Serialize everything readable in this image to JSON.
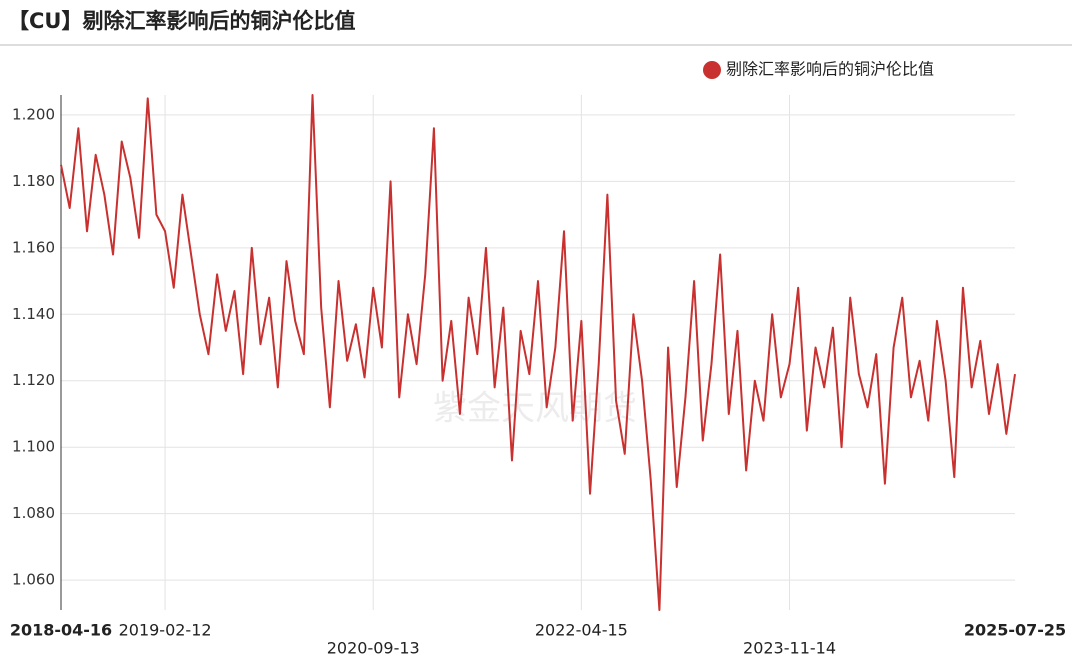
{
  "chart_data": {
    "type": "line",
    "title": "【CU】剔除汇率影响后的铜沪伦比值",
    "watermark": "紫金天风期货",
    "legend": "top-right",
    "grid": true,
    "categories": [
      "2018-04-16",
      null,
      null,
      null,
      null,
      null,
      null,
      null,
      null,
      null,
      null,
      null,
      "2019-02-12",
      null,
      null,
      null,
      null,
      null,
      null,
      null,
      null,
      null,
      null,
      null,
      null,
      null,
      null,
      null,
      null,
      null,
      null,
      null,
      null,
      null,
      null,
      null,
      "2020-09-13",
      null,
      null,
      null,
      null,
      null,
      null,
      null,
      null,
      null,
      null,
      null,
      null,
      null,
      null,
      null,
      null,
      null,
      null,
      null,
      null,
      null,
      null,
      null,
      "2022-04-15",
      null,
      null,
      null,
      null,
      null,
      null,
      null,
      null,
      null,
      null,
      null,
      null,
      null,
      null,
      null,
      null,
      null,
      null,
      null,
      null,
      null,
      null,
      null,
      "2023-11-14",
      null,
      null,
      null,
      null,
      null,
      null,
      null,
      null,
      null,
      null,
      null,
      null,
      null,
      null,
      null,
      null,
      null,
      null,
      null,
      null,
      null,
      null,
      null,
      null,
      null,
      "2025-07-25"
    ],
    "series": [
      {
        "name": "剔除汇率影响后的铜沪伦比值",
        "color": "#c8312f",
        "values": [
          1.185,
          1.172,
          1.196,
          1.165,
          1.188,
          1.176,
          1.158,
          1.192,
          1.181,
          1.163,
          1.205,
          1.17,
          1.165,
          1.148,
          1.176,
          1.158,
          1.14,
          1.128,
          1.152,
          1.135,
          1.147,
          1.122,
          1.16,
          1.131,
          1.145,
          1.118,
          1.156,
          1.138,
          1.128,
          1.206,
          1.142,
          1.112,
          1.15,
          1.126,
          1.137,
          1.121,
          1.148,
          1.13,
          1.18,
          1.115,
          1.14,
          1.125,
          1.152,
          1.196,
          1.12,
          1.138,
          1.11,
          1.145,
          1.128,
          1.16,
          1.118,
          1.142,
          1.096,
          1.135,
          1.122,
          1.15,
          1.112,
          1.13,
          1.165,
          1.108,
          1.138,
          1.086,
          1.125,
          1.176,
          1.114,
          1.098,
          1.14,
          1.12,
          1.09,
          1.051,
          1.13,
          1.088,
          1.115,
          1.15,
          1.102,
          1.125,
          1.158,
          1.11,
          1.135,
          1.093,
          1.12,
          1.108,
          1.14,
          1.115,
          1.125,
          1.148,
          1.105,
          1.13,
          1.118,
          1.136,
          1.1,
          1.145,
          1.122,
          1.112,
          1.128,
          1.089,
          1.13,
          1.145,
          1.115,
          1.126,
          1.108,
          1.138,
          1.12,
          1.091,
          1.148,
          1.118,
          1.132,
          1.11,
          1.125,
          1.104,
          1.122
        ]
      }
    ],
    "ylim": [
      1.051,
      1.206
    ],
    "yticks": [
      {
        "value": 1.06,
        "label": "1.060"
      },
      {
        "value": 1.08,
        "label": "1.080"
      },
      {
        "value": 1.1,
        "label": "1.100"
      },
      {
        "value": 1.12,
        "label": "1.120"
      },
      {
        "value": 1.14,
        "label": "1.140"
      },
      {
        "value": 1.16,
        "label": "1.160"
      },
      {
        "value": 1.18,
        "label": "1.180"
      },
      {
        "value": 1.2,
        "label": "1.200"
      }
    ]
  }
}
